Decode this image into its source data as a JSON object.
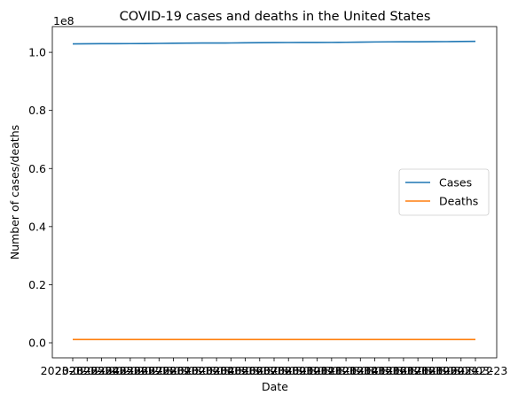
{
  "chart_data": {
    "type": "line",
    "title": "COVID-19 cases and deaths in the United States",
    "xlabel": "Date",
    "ylabel": "Number of cases/deaths",
    "y_offset_text": "1e8",
    "y_scale_factor": 100000000,
    "ylim": [
      -0.0518,
      1.0887
    ],
    "yticks": [
      0.0,
      0.2,
      0.4,
      0.6,
      0.8,
      1.0
    ],
    "ytick_labels": [
      "0.0",
      "0.2",
      "0.4",
      "0.6",
      "0.8",
      "1.0"
    ],
    "xtick_labels": [
      "2023-02-23",
      "2023-02-24",
      "2023-02-25",
      "2023-02-26",
      "2023-02-27",
      "2023-02-28",
      "2023-03-01",
      "2023-03-02",
      "2023-03-03",
      "2023-03-04",
      "2023-03-05",
      "2023-03-06",
      "2023-03-07",
      "2023-03-08",
      "2023-03-09",
      "2023-03-10",
      "2023-03-11",
      "2023-03-12",
      "2023-03-13",
      "2023-03-14",
      "2023-03-15",
      "2023-03-16",
      "2023-03-17",
      "2023-03-18",
      "2023-03-19",
      "2023-03-20",
      "2023-03-21",
      "2023-03-22",
      "2023-03-23"
    ],
    "legend_position": "center-right",
    "grid": false,
    "series": [
      {
        "name": "Cases",
        "color": "#1f77b4",
        "values": [
          1.029,
          1.0295,
          1.0297,
          1.0298,
          1.03,
          1.0303,
          1.0308,
          1.0313,
          1.0318,
          1.032,
          1.0321,
          1.0323,
          1.0327,
          1.0331,
          1.0335,
          1.0338,
          1.0339,
          1.034,
          1.0342,
          1.0346,
          1.0352,
          1.0357,
          1.0361,
          1.0363,
          1.0364,
          1.0366,
          1.0369,
          1.0373,
          1.0378
        ]
      },
      {
        "name": "Deaths",
        "color": "#ff7f0e",
        "values": [
          0.0112,
          0.0112,
          0.0112,
          0.0112,
          0.0112,
          0.0112,
          0.0112,
          0.0112,
          0.0112,
          0.0112,
          0.0112,
          0.0112,
          0.0112,
          0.0112,
          0.0112,
          0.0112,
          0.0112,
          0.0112,
          0.0112,
          0.0112,
          0.0112,
          0.0112,
          0.0112,
          0.0112,
          0.0112,
          0.0112,
          0.0112,
          0.0112,
          0.0112
        ]
      }
    ]
  }
}
